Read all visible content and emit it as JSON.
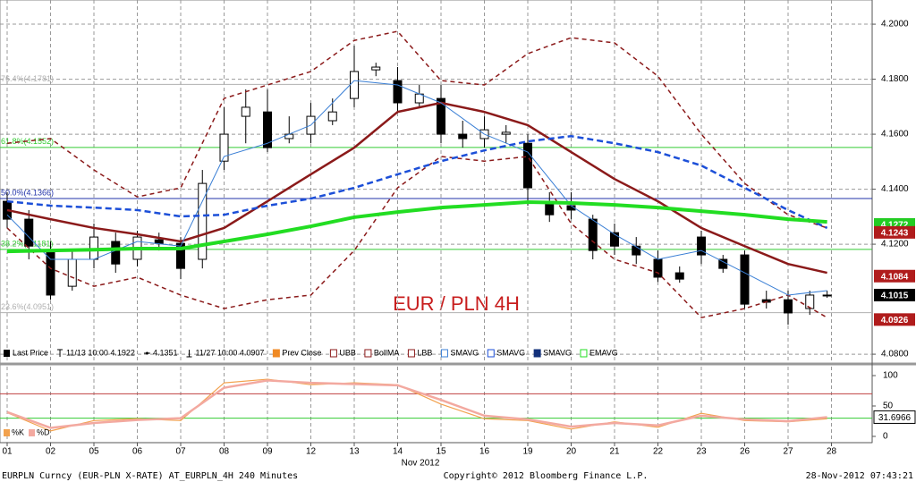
{
  "chart_data": [
    {
      "type": "candlestick",
      "annotation": "EUR / PLN 4H",
      "categories": [
        "01",
        "02",
        "05",
        "06",
        "07",
        "08",
        "09",
        "12",
        "13",
        "14",
        "15",
        "16",
        "19",
        "20",
        "21",
        "22",
        "23",
        "26",
        "27",
        "28"
      ],
      "x_label": "Nov 2012",
      "ylim": [
        4.0771,
        4.2088
      ],
      "yticks": [
        {
          "value": 4.08,
          "label": "4.0800"
        },
        {
          "value": 4.12,
          "label": "4.1200"
        },
        {
          "value": 4.14,
          "label": "4.1400"
        },
        {
          "value": 4.16,
          "label": "4.1600"
        },
        {
          "value": 4.18,
          "label": "4.1800"
        },
        {
          "value": 4.2,
          "label": "4.2000"
        }
      ],
      "grid": true,
      "candles": {
        "name": "Last Price",
        "x": [
          0,
          0.5,
          1,
          1.5,
          2,
          2.5,
          3,
          3.5,
          4,
          4.5,
          5,
          5.5,
          6,
          6.5,
          7,
          7.5,
          8,
          8.5,
          9,
          9.5,
          10,
          10.5,
          11,
          11.5,
          12,
          12.5,
          13,
          13.5,
          14,
          14.5,
          15,
          15.5,
          16,
          16.5,
          17,
          17.5,
          18,
          18.5,
          18.9
        ],
        "open": [
          4.1356,
          4.1291,
          4.1177,
          4.1047,
          4.1145,
          4.121,
          4.1145,
          4.1216,
          4.1203,
          4.1145,
          4.1502,
          4.1665,
          4.1681,
          4.1584,
          4.16,
          4.1649,
          4.173,
          4.1834,
          4.1795,
          4.1714,
          4.173,
          4.16,
          4.1584,
          4.16,
          4.1567,
          4.1356,
          4.134,
          4.1291,
          4.1242,
          4.1193,
          4.1145,
          4.1096,
          4.1226,
          4.1145,
          4.1161,
          4.0998,
          4.0998,
          4.0966,
          4.1015
        ],
        "high": [
          4.1389,
          4.1324,
          4.121,
          4.1177,
          4.1275,
          4.1242,
          4.1249,
          4.1242,
          4.1226,
          4.147,
          4.1698,
          4.1763,
          4.1763,
          4.1665,
          4.1714,
          4.173,
          4.1922,
          4.186,
          4.1844,
          4.1779,
          4.1779,
          4.1649,
          4.1665,
          4.1633,
          4.16,
          4.1389,
          4.1389,
          4.1307,
          4.1275,
          4.1226,
          4.1177,
          4.1119,
          4.1249,
          4.1161,
          4.1177,
          4.1031,
          4.1031,
          4.1031,
          4.1031
        ],
        "low": [
          4.1259,
          4.1145,
          4.0998,
          4.1031,
          4.1112,
          4.1096,
          4.1119,
          4.1177,
          4.1073,
          4.1112,
          4.147,
          4.1567,
          4.1535,
          4.1567,
          4.1567,
          4.1633,
          4.1698,
          4.1811,
          4.1681,
          4.1698,
          4.1567,
          4.1551,
          4.1551,
          4.1567,
          4.134,
          4.1281,
          4.1291,
          4.1145,
          4.1161,
          4.1128,
          4.1063,
          4.106,
          4.1128,
          4.1096,
          4.0966,
          4.0966,
          4.0907,
          4.0943,
          4.1005
        ],
        "close": [
          4.1291,
          4.1193,
          4.1015,
          4.1145,
          4.1226,
          4.1128,
          4.1226,
          4.1203,
          4.1112,
          4.1421,
          4.16,
          4.1698,
          4.1551,
          4.16,
          4.1665,
          4.1681,
          4.1828,
          4.1844,
          4.1714,
          4.1746,
          4.16,
          4.1584,
          4.1616,
          4.1607,
          4.1405,
          4.1307,
          4.1324,
          4.1177,
          4.1193,
          4.1161,
          4.108,
          4.1073,
          4.1161,
          4.1112,
          4.0982,
          4.0989,
          4.095,
          4.1015,
          4.1015
        ]
      },
      "stats": [
        "11/13 10:00 4.1922",
        "4.1351",
        "11/27 10:00 4.0907"
      ],
      "x": [
        0,
        1,
        2,
        3,
        4,
        5,
        6,
        7,
        8,
        9,
        10,
        11,
        12,
        13,
        14,
        15,
        16,
        17,
        18,
        18.9
      ],
      "series": [
        {
          "name": "Prev Close",
          "color": "#f08a24"
        },
        {
          "name": "UBB",
          "color": "#8b1a1a",
          "dash": true,
          "width": 1.5,
          "values": [
            4.1567,
            4.1584,
            4.147,
            4.1372,
            4.1405,
            4.173,
            4.1779,
            4.1828,
            4.1941,
            4.1974,
            4.1795,
            4.1779,
            4.1893,
            4.1951,
            4.1932,
            4.1811,
            4.16,
            4.1421,
            4.1307,
            4.1259
          ]
        },
        {
          "name": "BollMA",
          "color": "#8b1a1a",
          "width": 2.5,
          "values": [
            4.1324,
            4.1291,
            4.1259,
            4.1236,
            4.121,
            4.1259,
            4.1356,
            4.1454,
            4.1551,
            4.1681,
            4.1714,
            4.1681,
            4.1633,
            4.1535,
            4.1437,
            4.1356,
            4.1259,
            4.1193,
            4.1128,
            4.1096
          ]
        },
        {
          "name": "LBB",
          "color": "#8b1a1a",
          "dash": true,
          "width": 1.5,
          "values": [
            4.1259,
            4.1112,
            4.1047,
            4.108,
            4.1015,
            4.0966,
            4.0998,
            4.1015,
            4.1177,
            4.1405,
            4.1519,
            4.1502,
            4.1519,
            4.1275,
            4.1145,
            4.1096,
            4.0933,
            4.0966,
            4.1015,
            4.0933
          ]
        },
        {
          "name": "SMAVG",
          "color": "#3a7fd5",
          "width": 1,
          "values": [
            4.1307,
            4.1145,
            4.1145,
            4.121,
            4.1193,
            4.1519,
            4.1567,
            4.1633,
            4.1795,
            4.1779,
            4.1714,
            4.16,
            4.1535,
            4.134,
            4.1236,
            4.1145,
            4.1177,
            4.1096,
            4.1015,
            4.1031
          ]
        },
        {
          "name": "SMAVG",
          "color": "#1c4fd8",
          "dash": true,
          "width": 2.5,
          "values": [
            4.1356,
            4.134,
            4.1333,
            4.1324,
            4.1301,
            4.1307,
            4.134,
            4.1366,
            4.1405,
            4.1454,
            4.1502,
            4.1541,
            4.1574,
            4.1593,
            4.1567,
            4.1535,
            4.1486,
            4.1405,
            4.1324,
            4.1259
          ]
        },
        {
          "name": "SMAVG",
          "color": "#12307a"
        },
        {
          "name": "EMAVG",
          "color": "#22dd22",
          "width": 4,
          "values": [
            4.1174,
            4.1177,
            4.118,
            4.1184,
            4.1184,
            4.121,
            4.1236,
            4.1265,
            4.1298,
            4.1317,
            4.1333,
            4.1343,
            4.1353,
            4.135,
            4.1343,
            4.1333,
            4.132,
            4.1307,
            4.1291,
            4.1281
          ]
        }
      ],
      "levels": [
        {
          "label": "76.4%(4.1781)",
          "value": 4.1781,
          "color": "#b0b0b0"
        },
        {
          "label": "61.8%(4.1552)",
          "value": 4.1552,
          "color": "#33cc33"
        },
        {
          "label": "50.0%(4.1366)",
          "value": 4.1366,
          "color": "#2233aa"
        },
        {
          "label": "38.2%(4.1181)",
          "value": 4.1181,
          "color": "#33cc33"
        },
        {
          "label": "23.6%(4.0951)",
          "value": 4.0951,
          "color": "#b0b0b0"
        }
      ],
      "value_tags": [
        {
          "value": 4.1272,
          "color": "#22cc22"
        },
        {
          "value": 4.1243,
          "color": "#b01c1c"
        },
        {
          "value": 4.1084,
          "color": "#b01c1c"
        },
        {
          "value": 4.1015,
          "color": "#000000"
        },
        {
          "value": 4.0926,
          "color": "#b01c1c"
        }
      ]
    },
    {
      "type": "line",
      "ylim": [
        -10.3,
        114.7
      ],
      "yticks": [
        0,
        50,
        100
      ],
      "x": [
        0,
        1,
        2,
        3,
        4,
        5,
        6,
        7,
        8,
        9,
        10,
        11,
        12,
        13,
        14,
        15,
        16,
        17,
        18,
        18.9
      ],
      "series": [
        {
          "name": "%K",
          "color": "#f2a24e",
          "width": 1.2,
          "values": [
            39,
            9,
            26,
            29,
            26,
            88,
            94,
            85,
            88,
            85,
            53,
            29,
            26,
            12,
            24,
            15,
            38,
            26,
            24,
            29
          ]
        },
        {
          "name": "%D",
          "color": "#f3a9a0",
          "width": 2.5,
          "values": [
            40,
            14,
            22,
            27,
            30,
            80,
            92,
            88,
            86,
            84,
            60,
            34,
            28,
            16,
            22,
            18,
            34,
            28,
            25,
            31.6966
          ]
        }
      ],
      "levels": [
        {
          "value": 70,
          "color": "#c04040"
        },
        {
          "value": 30,
          "color": "#33cc33"
        }
      ],
      "value_tags": [
        {
          "value": 31.6966,
          "color": "#ffffff"
        }
      ]
    }
  ],
  "footer": {
    "left": "EURPLN Curncy (EUR-PLN X-RATE) AT_EURPLN_4H  240 Minutes",
    "center": "Copyright© 2012 Bloomberg Finance L.P.",
    "right": "28-Nov-2012 07:43:21"
  }
}
